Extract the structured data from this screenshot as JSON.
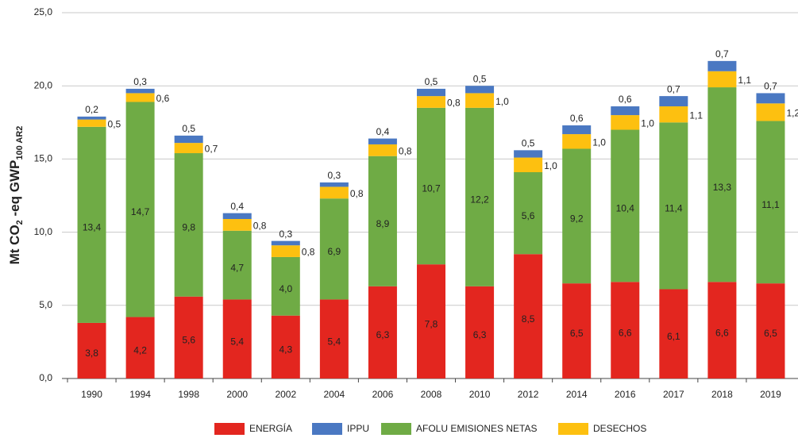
{
  "chart_data": {
    "type": "stacked_bar",
    "y_label": [
      "Mt CO",
      "2",
      " -eq GWP",
      "100 AR2"
    ],
    "categories": [
      "1990",
      "1994",
      "1998",
      "2000",
      "2002",
      "2004",
      "2006",
      "2008",
      "2010",
      "2012",
      "2014",
      "2016",
      "2017",
      "2018",
      "2019"
    ],
    "series": [
      {
        "name": "ENERGÍA",
        "color": "#e3261f",
        "values": [
          3.8,
          4.2,
          5.6,
          5.4,
          4.3,
          5.4,
          6.3,
          7.8,
          6.3,
          8.5,
          6.5,
          6.6,
          6.1,
          6.6,
          6.5
        ],
        "value_labels": [
          "3,8",
          "4,2",
          "5,6",
          "5,4",
          "4,3",
          "5,4",
          "6,3",
          "7,8",
          "6,3",
          "8,5",
          "6,5",
          "6,6",
          "6,1",
          "6,6",
          "6,5"
        ]
      },
      {
        "name": "IPPU",
        "color": "#4a78c2",
        "values": [
          0.2,
          0.3,
          0.5,
          0.4,
          0.3,
          0.3,
          0.4,
          0.5,
          0.5,
          0.5,
          0.6,
          0.6,
          0.7,
          0.7,
          0.7
        ],
        "value_labels": [
          "0,2",
          "0,3",
          "0,5",
          "0,4",
          "0,3",
          "0,3",
          "0,4",
          "0,5",
          "0,5",
          "0,5",
          "0,6",
          "0,6",
          "0,7",
          "0,7",
          "0,7"
        ]
      },
      {
        "name": "AFOLU EMISIONES NETAS",
        "color": "#6fab45",
        "values": [
          13.4,
          14.7,
          9.8,
          4.7,
          4.0,
          6.9,
          8.9,
          10.7,
          12.2,
          5.6,
          9.2,
          10.4,
          11.4,
          13.3,
          11.1
        ],
        "value_labels": [
          "13,4",
          "14,7",
          "9,8",
          "4,7",
          "4,0",
          "6,9",
          "8,9",
          "10,7",
          "12,2",
          "5,6",
          "9,2",
          "10,4",
          "11,4",
          "13,3",
          "11,1"
        ]
      },
      {
        "name": "DESECHOS",
        "color": "#fdc010",
        "values": [
          0.5,
          0.6,
          0.7,
          0.8,
          0.8,
          0.8,
          0.8,
          0.8,
          1.0,
          1.0,
          1.0,
          1.0,
          1.1,
          1.1,
          1.2
        ],
        "value_labels": [
          "0,5",
          "0,6",
          "0,7",
          "0,8",
          "0,8",
          "0,8",
          "0,8",
          "0,8",
          "1,0",
          "1,0",
          "1,0",
          "1,0",
          "1,1",
          "1,1",
          "1,2"
        ]
      }
    ],
    "ylim": [
      0,
      25
    ],
    "yticks": [
      {
        "value": 0,
        "label": "0,0"
      },
      {
        "value": 5,
        "label": "5,0"
      },
      {
        "value": 10,
        "label": "10,0"
      },
      {
        "value": 15,
        "label": "15,0"
      },
      {
        "value": 20,
        "label": "20,0"
      },
      {
        "value": 25,
        "label": "25,0"
      }
    ],
    "grid": true
  }
}
